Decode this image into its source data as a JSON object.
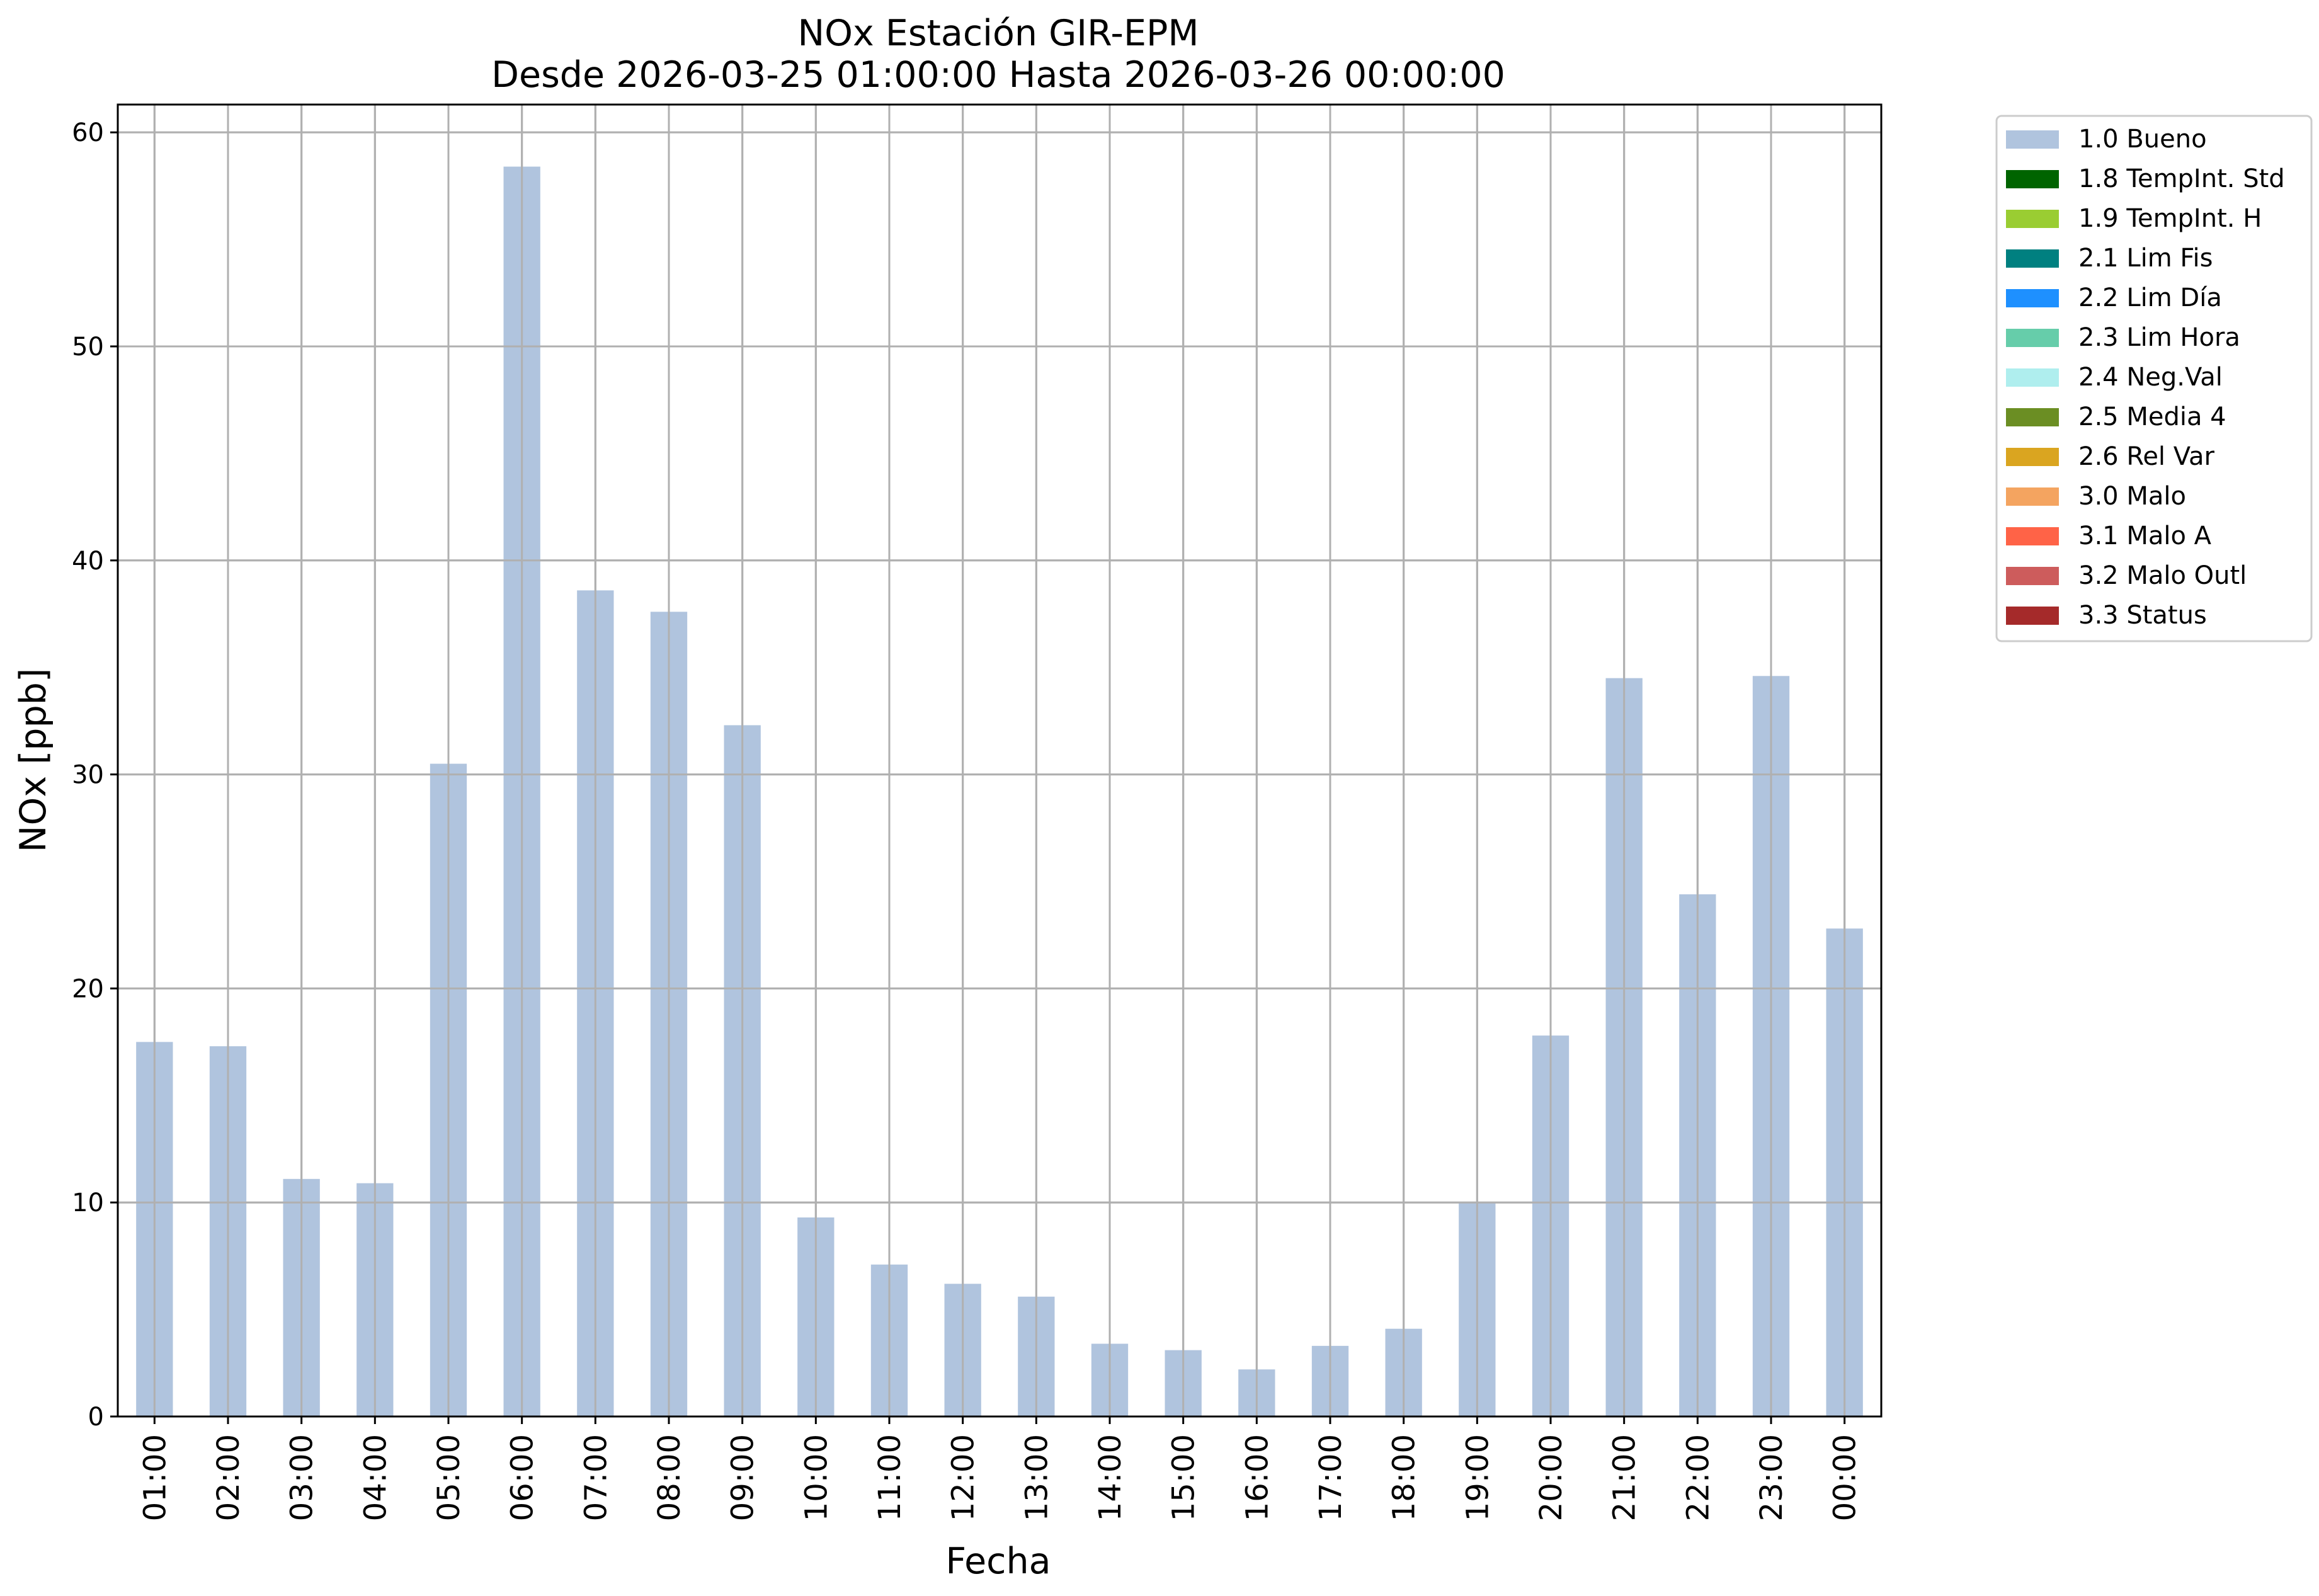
{
  "chart_data": {
    "type": "bar",
    "title": "NOx Estación GIR-EPM",
    "subtitle": "Desde 2026-03-25 01:00:00 Hasta 2026-03-26 00:00:00",
    "xlabel": "Fecha",
    "ylabel": "NOx [ppb]",
    "ylim": [
      0,
      61.3
    ],
    "yticks": [
      0,
      10,
      20,
      30,
      40,
      50,
      60
    ],
    "grid": true,
    "legend_position": "outside-top-right",
    "categories": [
      "01:00",
      "02:00",
      "03:00",
      "04:00",
      "05:00",
      "06:00",
      "07:00",
      "08:00",
      "09:00",
      "10:00",
      "11:00",
      "12:00",
      "13:00",
      "14:00",
      "15:00",
      "16:00",
      "17:00",
      "18:00",
      "19:00",
      "20:00",
      "21:00",
      "22:00",
      "23:00",
      "00:00"
    ],
    "series": [
      {
        "name": "1.0 Bueno",
        "color": "#b0c4de",
        "values": [
          17.5,
          17.3,
          11.1,
          10.9,
          30.5,
          58.4,
          38.6,
          37.6,
          32.3,
          9.3,
          7.1,
          6.2,
          5.6,
          3.4,
          3.1,
          2.2,
          3.3,
          4.1,
          10.0,
          17.8,
          34.5,
          24.4,
          34.6,
          22.8
        ]
      }
    ],
    "legend": [
      {
        "label": "1.0 Bueno",
        "color": "#b0c4de"
      },
      {
        "label": "1.8 TempInt. Std",
        "color": "#006400"
      },
      {
        "label": "1.9 TempInt. H",
        "color": "#9acd32"
      },
      {
        "label": "2.1 Lim Fis",
        "color": "#008080"
      },
      {
        "label": "2.2 Lim Día",
        "color": "#1e90ff"
      },
      {
        "label": "2.3 Lim Hora",
        "color": "#66cdaa"
      },
      {
        "label": "2.4 Neg.Val",
        "color": "#afeeee"
      },
      {
        "label": "2.5 Media 4",
        "color": "#6b8e23"
      },
      {
        "label": "2.6 Rel Var",
        "color": "#daa520"
      },
      {
        "label": "3.0 Malo",
        "color": "#f4a460"
      },
      {
        "label": "3.1 Malo A",
        "color": "#ff6347"
      },
      {
        "label": "3.2 Malo Outl",
        "color": "#cd5c5c"
      },
      {
        "label": "3.3 Status",
        "color": "#a52a2a"
      }
    ]
  }
}
